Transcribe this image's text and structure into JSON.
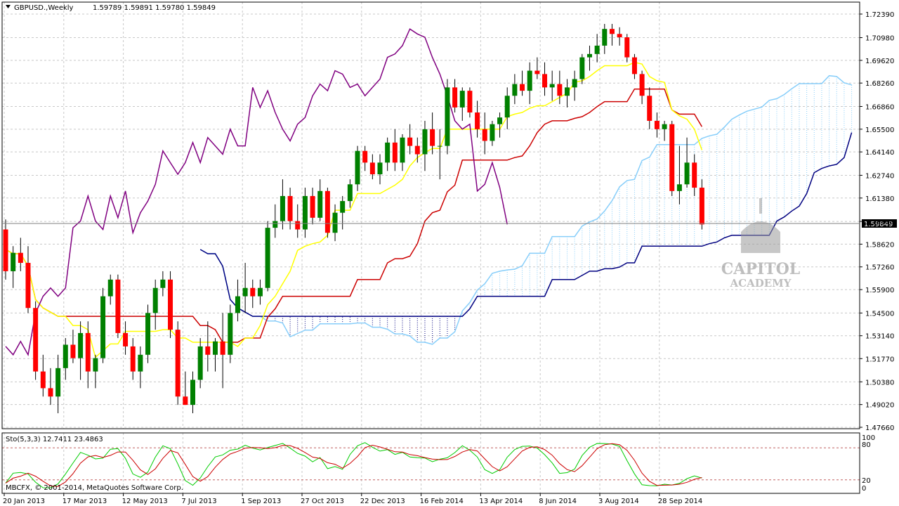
{
  "header": {
    "symbol": "GBPUSD.,Weekly",
    "ohlc": "1.59789 1.59891 1.59780 1.59849",
    "menu_icon": "triangle-down-icon"
  },
  "price_axis": {
    "ticks": [
      "1.72390",
      "1.70980",
      "1.69620",
      "1.68260",
      "1.66860",
      "1.65500",
      "1.64140",
      "1.62740",
      "1.61380",
      "1.59980",
      "1.58620",
      "1.57260",
      "1.55900",
      "1.54500",
      "1.53140",
      "1.51770",
      "1.50380",
      "1.49020",
      "1.47660"
    ],
    "current_price": "1.59849",
    "ylim": [
      1.4766,
      1.7239
    ]
  },
  "time_axis": {
    "labels": [
      "20 Jan 2013",
      "17 Mar 2013",
      "12 May 2013",
      "7 Jul 2013",
      "1 Sep 2013",
      "27 Oct 2013",
      "22 Dec 2013",
      "16 Feb 2014",
      "13 Apr 2014",
      "8 Jun 2014",
      "3 Aug 2014",
      "28 Sep 2014"
    ]
  },
  "indicator": {
    "title": "Sto(5,3,3) 12.7411 23.4863",
    "levels": [
      "100",
      "80",
      "20",
      "0"
    ],
    "copyright": "MBCFX, © 2001-2014, MetaQuotes Software Corp."
  },
  "watermark": {
    "line1": "CAPITOL",
    "line2": "ACADEMY"
  },
  "colors": {
    "bull": "#008000",
    "bear": "#ff0000",
    "tenkan": "#ffff00",
    "kijun": "#cc0000",
    "chikou": "#800080",
    "spanA": "#87cefa",
    "spanB": "#000080",
    "stoch_main": "#00cc00",
    "stoch_signal": "#cc0000"
  },
  "chart_data": {
    "type": "candlestick",
    "title": "GBPUSD.,Weekly",
    "ylim": [
      1.4766,
      1.7239
    ],
    "candles": [
      [
        1.595,
        1.601,
        1.565,
        1.57
      ],
      [
        1.57,
        1.585,
        1.56,
        1.581
      ],
      [
        1.581,
        1.59,
        1.57,
        1.575
      ],
      [
        1.575,
        1.585,
        1.545,
        1.548
      ],
      [
        1.548,
        1.552,
        1.505,
        1.51
      ],
      [
        1.51,
        1.52,
        1.495,
        1.5
      ],
      [
        1.5,
        1.512,
        1.49,
        1.495
      ],
      [
        1.495,
        1.52,
        1.485,
        1.512
      ],
      [
        1.512,
        1.53,
        1.505,
        1.526
      ],
      [
        1.526,
        1.535,
        1.515,
        1.518
      ],
      [
        1.518,
        1.54,
        1.505,
        1.533
      ],
      [
        1.533,
        1.54,
        1.5,
        1.51
      ],
      [
        1.51,
        1.52,
        1.5,
        1.518
      ],
      [
        1.518,
        1.56,
        1.515,
        1.555
      ],
      [
        1.555,
        1.568,
        1.55,
        1.565
      ],
      [
        1.565,
        1.568,
        1.53,
        1.533
      ],
      [
        1.533,
        1.54,
        1.52,
        1.525
      ],
      [
        1.525,
        1.53,
        1.505,
        1.51
      ],
      [
        1.51,
        1.525,
        1.5,
        1.52
      ],
      [
        1.52,
        1.55,
        1.515,
        1.545
      ],
      [
        1.545,
        1.565,
        1.535,
        1.56
      ],
      [
        1.56,
        1.57,
        1.555,
        1.565
      ],
      [
        1.565,
        1.57,
        1.53,
        1.535
      ],
      [
        1.535,
        1.54,
        1.49,
        1.495
      ],
      [
        1.495,
        1.51,
        1.49,
        1.49
      ],
      [
        1.49,
        1.51,
        1.485,
        1.505
      ],
      [
        1.505,
        1.53,
        1.5,
        1.525
      ],
      [
        1.525,
        1.54,
        1.51,
        1.52
      ],
      [
        1.52,
        1.53,
        1.51,
        1.528
      ],
      [
        1.528,
        1.545,
        1.5,
        1.52
      ],
      [
        1.52,
        1.55,
        1.515,
        1.545
      ],
      [
        1.545,
        1.565,
        1.54,
        1.555
      ],
      [
        1.555,
        1.575,
        1.545,
        1.56
      ],
      [
        1.56,
        1.565,
        1.548,
        1.555
      ],
      [
        1.555,
        1.565,
        1.55,
        1.56
      ],
      [
        1.56,
        1.6,
        1.558,
        1.596
      ],
      [
        1.596,
        1.61,
        1.59,
        1.6
      ],
      [
        1.6,
        1.625,
        1.595,
        1.615
      ],
      [
        1.615,
        1.62,
        1.595,
        1.6
      ],
      [
        1.6,
        1.61,
        1.59,
        1.595
      ],
      [
        1.595,
        1.62,
        1.59,
        1.615
      ],
      [
        1.615,
        1.62,
        1.598,
        1.602
      ],
      [
        1.602,
        1.625,
        1.6,
        1.618
      ],
      [
        1.618,
        1.62,
        1.59,
        1.593
      ],
      [
        1.593,
        1.61,
        1.588,
        1.605
      ],
      [
        1.605,
        1.615,
        1.595,
        1.612
      ],
      [
        1.612,
        1.625,
        1.608,
        1.622
      ],
      [
        1.622,
        1.645,
        1.618,
        1.642
      ],
      [
        1.642,
        1.645,
        1.63,
        1.635
      ],
      [
        1.635,
        1.64,
        1.625,
        1.628
      ],
      [
        1.628,
        1.64,
        1.622,
        1.635
      ],
      [
        1.635,
        1.65,
        1.63,
        1.647
      ],
      [
        1.647,
        1.655,
        1.63,
        1.635
      ],
      [
        1.635,
        1.652,
        1.63,
        1.65
      ],
      [
        1.65,
        1.658,
        1.64,
        1.645
      ],
      [
        1.645,
        1.65,
        1.635,
        1.64
      ],
      [
        1.64,
        1.66,
        1.63,
        1.655
      ],
      [
        1.655,
        1.665,
        1.64,
        1.645
      ],
      [
        1.645,
        1.655,
        1.625,
        1.645
      ],
      [
        1.645,
        1.685,
        1.64,
        1.68
      ],
      [
        1.68,
        1.685,
        1.665,
        1.668
      ],
      [
        1.668,
        1.68,
        1.66,
        1.678
      ],
      [
        1.678,
        1.68,
        1.662,
        1.665
      ],
      [
        1.665,
        1.672,
        1.65,
        1.655
      ],
      [
        1.655,
        1.665,
        1.64,
        1.648
      ],
      [
        1.648,
        1.66,
        1.645,
        1.658
      ],
      [
        1.658,
        1.665,
        1.65,
        1.662
      ],
      [
        1.662,
        1.68,
        1.655,
        1.675
      ],
      [
        1.675,
        1.688,
        1.67,
        1.682
      ],
      [
        1.682,
        1.69,
        1.675,
        1.678
      ],
      [
        1.678,
        1.695,
        1.67,
        1.69
      ],
      [
        1.69,
        1.698,
        1.685,
        1.688
      ],
      [
        1.688,
        1.695,
        1.675,
        1.68
      ],
      [
        1.68,
        1.69,
        1.672,
        1.682
      ],
      [
        1.682,
        1.69,
        1.67,
        1.675
      ],
      [
        1.675,
        1.685,
        1.668,
        1.68
      ],
      [
        1.68,
        1.69,
        1.672,
        1.685
      ],
      [
        1.685,
        1.7,
        1.682,
        1.698
      ],
      [
        1.698,
        1.705,
        1.69,
        1.7
      ],
      [
        1.7,
        1.712,
        1.695,
        1.705
      ],
      [
        1.705,
        1.718,
        1.7,
        1.715
      ],
      [
        1.715,
        1.718,
        1.705,
        1.712
      ],
      [
        1.712,
        1.716,
        1.705,
        1.71
      ],
      [
        1.71,
        1.712,
        1.695,
        1.698
      ],
      [
        1.698,
        1.7,
        1.685,
        1.688
      ],
      [
        1.688,
        1.69,
        1.67,
        1.675
      ],
      [
        1.675,
        1.68,
        1.655,
        1.66
      ],
      [
        1.66,
        1.665,
        1.65,
        1.655
      ],
      [
        1.655,
        1.66,
        1.648,
        1.658
      ],
      [
        1.658,
        1.66,
        1.615,
        1.618
      ],
      [
        1.618,
        1.645,
        1.61,
        1.622
      ],
      [
        1.622,
        1.65,
        1.62,
        1.635
      ],
      [
        1.635,
        1.64,
        1.615,
        1.62
      ],
      [
        1.62,
        1.625,
        1.595,
        1.598
      ]
    ],
    "stochastic": {
      "k_period": 5,
      "slowing": 3,
      "d_period": 3,
      "main": 12.7411,
      "signal": 23.4863
    }
  }
}
